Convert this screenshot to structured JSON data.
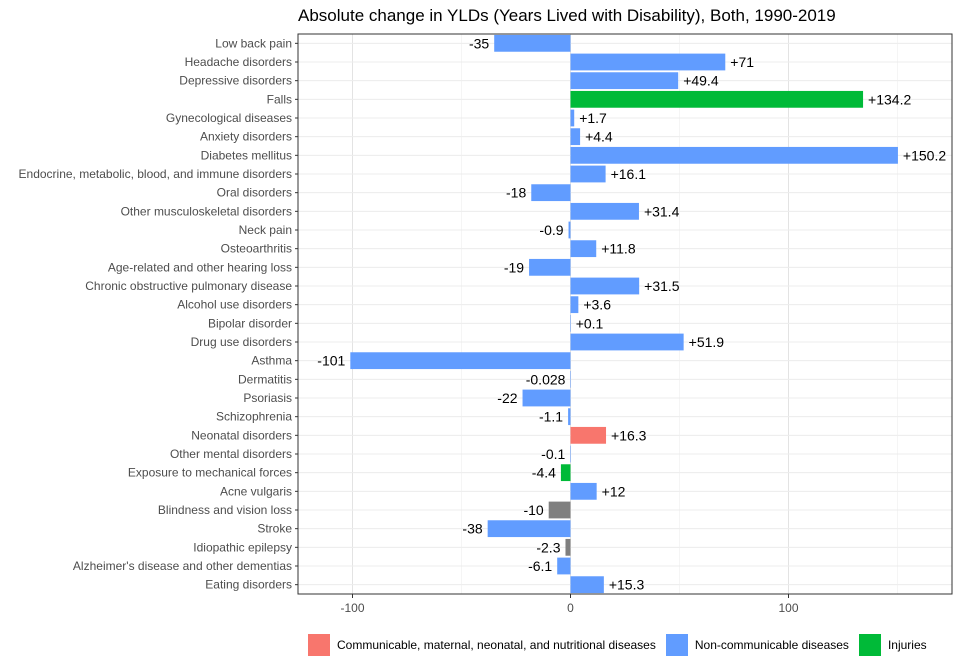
{
  "chart_data": {
    "type": "bar",
    "orientation": "horizontal",
    "title": "Absolute change in YLDs (Years Lived with Disability), Both, 1990-2019",
    "xlabel": "",
    "ylabel": "",
    "xlim": [
      -125,
      175
    ],
    "xticks": [
      -100,
      0,
      100
    ],
    "xtick_labels": [
      "-100",
      "0",
      "100"
    ],
    "grid": true,
    "legend_position": "bottom",
    "colors": {
      "communicable": "#F8766D",
      "ncd": "#619CFF",
      "injuries": "#00BA38",
      "other": "#7F7F7F"
    },
    "legend": [
      {
        "label": "Communicable, maternal, neonatal, and nutritional diseases",
        "color": "#F8766D"
      },
      {
        "label": "Non-communicable diseases",
        "color": "#619CFF"
      },
      {
        "label": "Injuries",
        "color": "#00BA38"
      }
    ],
    "bars": [
      {
        "category": "Low back pain",
        "value": -35,
        "label": "-35",
        "group": "ncd"
      },
      {
        "category": "Headache disorders",
        "value": 71,
        "label": "+71",
        "group": "ncd"
      },
      {
        "category": "Depressive disorders",
        "value": 49.4,
        "label": "+49.4",
        "group": "ncd"
      },
      {
        "category": "Falls",
        "value": 134.2,
        "label": "+134.2",
        "group": "injuries"
      },
      {
        "category": "Gynecological diseases",
        "value": 1.7,
        "label": "+1.7",
        "group": "ncd"
      },
      {
        "category": "Anxiety disorders",
        "value": 4.4,
        "label": "+4.4",
        "group": "ncd"
      },
      {
        "category": "Diabetes mellitus",
        "value": 150.2,
        "label": "+150.2",
        "group": "ncd"
      },
      {
        "category": "Endocrine, metabolic, blood, and immune disorders",
        "value": 16.1,
        "label": "+16.1",
        "group": "ncd"
      },
      {
        "category": "Oral disorders",
        "value": -18,
        "label": "-18",
        "group": "ncd"
      },
      {
        "category": "Other musculoskeletal disorders",
        "value": 31.4,
        "label": "+31.4",
        "group": "ncd"
      },
      {
        "category": "Neck pain",
        "value": -0.9,
        "label": "-0.9",
        "group": "ncd"
      },
      {
        "category": "Osteoarthritis",
        "value": 11.8,
        "label": "+11.8",
        "group": "ncd"
      },
      {
        "category": "Age-related and other hearing loss",
        "value": -19,
        "label": "-19",
        "group": "ncd"
      },
      {
        "category": "Chronic obstructive pulmonary disease",
        "value": 31.5,
        "label": "+31.5",
        "group": "ncd"
      },
      {
        "category": "Alcohol use disorders",
        "value": 3.6,
        "label": "+3.6",
        "group": "ncd"
      },
      {
        "category": "Bipolar disorder",
        "value": 0.1,
        "label": "+0.1",
        "group": "ncd"
      },
      {
        "category": "Drug use disorders",
        "value": 51.9,
        "label": "+51.9",
        "group": "ncd"
      },
      {
        "category": "Asthma",
        "value": -101,
        "label": "-101",
        "group": "ncd"
      },
      {
        "category": "Dermatitis",
        "value": -0.028,
        "label": "-0.028",
        "group": "ncd"
      },
      {
        "category": "Psoriasis",
        "value": -22,
        "label": "-22",
        "group": "ncd"
      },
      {
        "category": "Schizophrenia",
        "value": -1.1,
        "label": "-1.1",
        "group": "ncd"
      },
      {
        "category": "Neonatal disorders",
        "value": 16.3,
        "label": "+16.3",
        "group": "communicable"
      },
      {
        "category": "Other mental disorders",
        "value": -0.1,
        "label": "-0.1",
        "group": "ncd"
      },
      {
        "category": "Exposure to mechanical forces",
        "value": -4.4,
        "label": "-4.4",
        "group": "injuries"
      },
      {
        "category": "Acne vulgaris",
        "value": 12,
        "label": "+12",
        "group": "ncd"
      },
      {
        "category": "Blindness and vision loss",
        "value": -10,
        "label": "-10",
        "group": "other"
      },
      {
        "category": "Stroke",
        "value": -38,
        "label": "-38",
        "group": "ncd"
      },
      {
        "category": "Idiopathic epilepsy",
        "value": -2.3,
        "label": "-2.3",
        "group": "other"
      },
      {
        "category": "Alzheimer's disease and other dementias",
        "value": -6.1,
        "label": "-6.1",
        "group": "ncd"
      },
      {
        "category": "Eating disorders",
        "value": 15.3,
        "label": "+15.3",
        "group": "ncd"
      }
    ]
  }
}
